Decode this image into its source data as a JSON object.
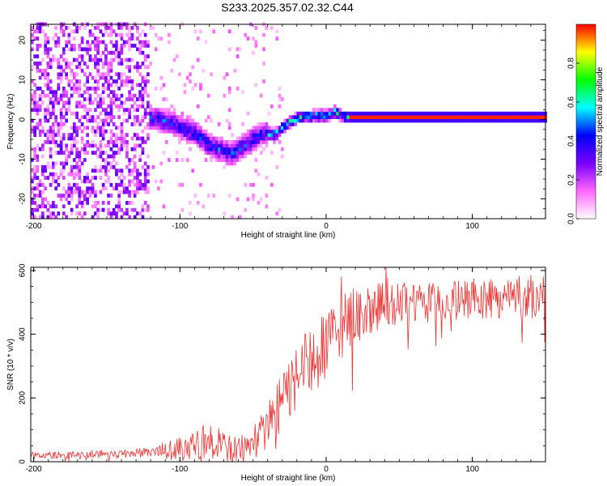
{
  "title": "S233.2025.357.02.32.C44",
  "chart_data": [
    {
      "type": "heatmap",
      "xlabel": "Height of straight line (km)",
      "ylabel": "Frequency (Hz)",
      "xlim": [
        -202,
        150
      ],
      "ylim": [
        -25,
        24
      ],
      "xticks": [
        -200,
        -100,
        0,
        100
      ],
      "xtick_labels": [
        "-200",
        "-100",
        "0",
        "100"
      ],
      "yticks": [
        -20,
        -10,
        0,
        10,
        20
      ],
      "ytick_labels": [
        "-20",
        "-10",
        "0",
        "10",
        "20"
      ],
      "colorbar": {
        "label": "Normalized spectral amplitude",
        "range": [
          0,
          1
        ],
        "ticks": [
          0.0,
          0.2,
          0.4,
          0.6,
          0.8
        ],
        "tick_labels": [
          "0.0",
          "0.2",
          "0.4",
          "0.6",
          "0.8"
        ],
        "colormap": [
          "#ffffff",
          "#ff66ff",
          "#7700ff",
          "#0000ff",
          "#00ffff",
          "#00ff00",
          "#ffff00",
          "#ff0000"
        ]
      },
      "features": {
        "noise_region_x": [
          -202,
          -122
        ],
        "noise_amplitude": 0.15,
        "signal_trace": [
          [
            -122,
            0.0
          ],
          [
            -115,
            -0.5
          ],
          [
            -108,
            -1.0
          ],
          [
            -100,
            -2.5
          ],
          [
            -90,
            -4.0
          ],
          [
            -80,
            -7.0
          ],
          [
            -70,
            -8.5
          ],
          [
            -65,
            -9.0
          ],
          [
            -55,
            -6.5
          ],
          [
            -45,
            -4.0
          ],
          [
            -35,
            -4.0
          ],
          [
            -28,
            -1.5
          ],
          [
            -20,
            0.0
          ],
          [
            -10,
            0.5
          ],
          [
            0,
            0.5
          ],
          [
            5,
            1.5
          ],
          [
            10,
            0.5
          ],
          [
            15,
            0.0
          ],
          [
            150,
            0.0
          ]
        ],
        "steady_tone": {
          "x": [
            15,
            150
          ],
          "frequency": 0.0,
          "amplitude": 0.98
        }
      }
    },
    {
      "type": "line",
      "xlabel": "Height of straight line (km)",
      "ylabel": "SNR (10 * v/v)",
      "xlim": [
        -202,
        150
      ],
      "ylim": [
        0,
        610
      ],
      "xticks": [
        -200,
        -100,
        0,
        100
      ],
      "xtick_labels": [
        "-200",
        "-100",
        "0",
        "100"
      ],
      "yticks": [
        0,
        200,
        400,
        600
      ],
      "ytick_labels": [
        "0",
        "200",
        "400",
        "600"
      ],
      "color": "#ee3333",
      "trend": {
        "x": [
          -202,
          -180,
          -140,
          -120,
          -100,
          -90,
          -80,
          -70,
          -60,
          -50,
          -40,
          -30,
          -20,
          -10,
          0,
          10,
          20,
          30,
          50,
          100,
          150
        ],
        "y": [
          20,
          20,
          25,
          30,
          40,
          60,
          65,
          50,
          40,
          60,
          110,
          190,
          270,
          310,
          360,
          420,
          460,
          480,
          490,
          510,
          520
        ]
      },
      "noise_scale": [
        [
          -202,
          10
        ],
        [
          -120,
          15
        ],
        [
          -100,
          40
        ],
        [
          -80,
          60
        ],
        [
          -60,
          40
        ],
        [
          -40,
          70
        ],
        [
          -20,
          110
        ],
        [
          0,
          110
        ],
        [
          20,
          90
        ],
        [
          60,
          60
        ],
        [
          150,
          70
        ]
      ]
    }
  ]
}
